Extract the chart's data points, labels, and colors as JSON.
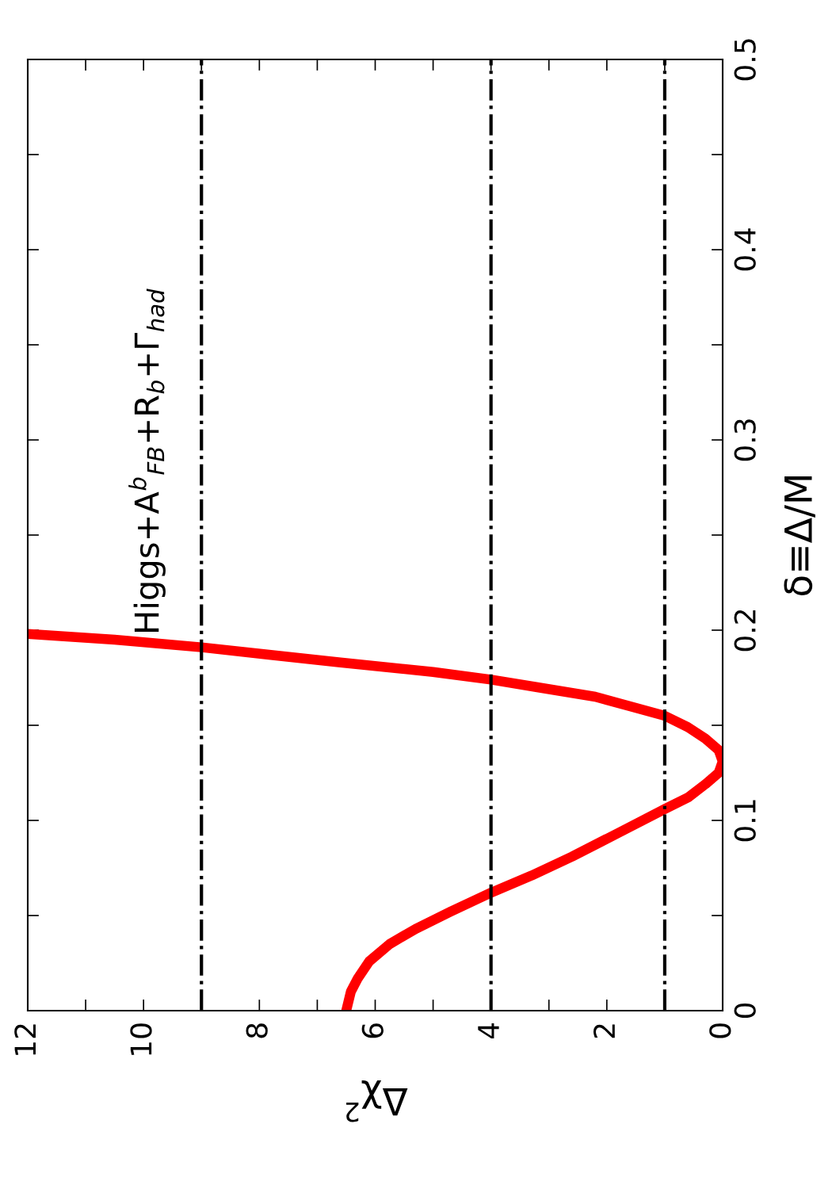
{
  "chart_data": {
    "type": "line",
    "xlabel": "Δχ$^{2}$",
    "ylabel": "δ≡Δ/M",
    "annotations": [
      "Higgs+A$^{b}$$_{FB}$+R$_{b}$+Γ$_{had}$"
    ],
    "xlim": [
      12,
      0
    ],
    "xticks": [
      12,
      {
        "value": 11,
        "label": null
      },
      10,
      {
        "value": 9,
        "label": null
      },
      8,
      {
        "value": 7,
        "label": null
      },
      6,
      {
        "value": 5,
        "label": null
      },
      4,
      {
        "value": 3,
        "label": null
      },
      2,
      {
        "value": 1,
        "label": null
      },
      0
    ],
    "ylim": [
      0,
      0.5
    ],
    "yticks": [
      0,
      {
        "value": 0.05,
        "label": null
      },
      0.1,
      {
        "value": 0.15,
        "label": null
      },
      0.2,
      {
        "value": 0.25,
        "label": null
      },
      0.3,
      {
        "value": 0.35,
        "label": null
      },
      0.4,
      {
        "value": 0.45,
        "label": null
      },
      0.5
    ],
    "grid": false,
    "legend": false,
    "line_style": "solid",
    "ref_lines": [
      {
        "axis": "x",
        "value": 1,
        "color": "#000000",
        "line_style": "dashdot"
      },
      {
        "axis": "x",
        "value": 4,
        "color": "#000000",
        "line_style": "dashdot"
      },
      {
        "axis": "x",
        "value": 9,
        "color": "#000000",
        "line_style": "dashdot"
      }
    ],
    "series": [
      {
        "color": "#ff0000",
        "x": [
          6.5,
          6.42,
          6.3,
          6.1,
          5.75,
          5.3,
          4.7,
          4.0,
          3.3,
          2.6,
          1.7,
          1.0,
          0.6,
          0.3,
          0.07,
          0.0,
          0.07,
          0.3,
          0.6,
          1.0,
          1.6,
          2.2,
          3.2,
          4.0,
          5.0,
          6.6,
          7.8,
          9.0,
          10.5,
          12.0
        ],
        "values": [
          0,
          0.01,
          0.017,
          0.026,
          0.035,
          0.043,
          0.052,
          0.062,
          0.071,
          0.081,
          0.095,
          0.106,
          0.112,
          0.119,
          0.125,
          0.131,
          0.137,
          0.143,
          0.149,
          0.155,
          0.16,
          0.165,
          0.17,
          0.174,
          0.178,
          0.183,
          0.187,
          0.191,
          0.195,
          0.198
        ]
      }
    ]
  }
}
